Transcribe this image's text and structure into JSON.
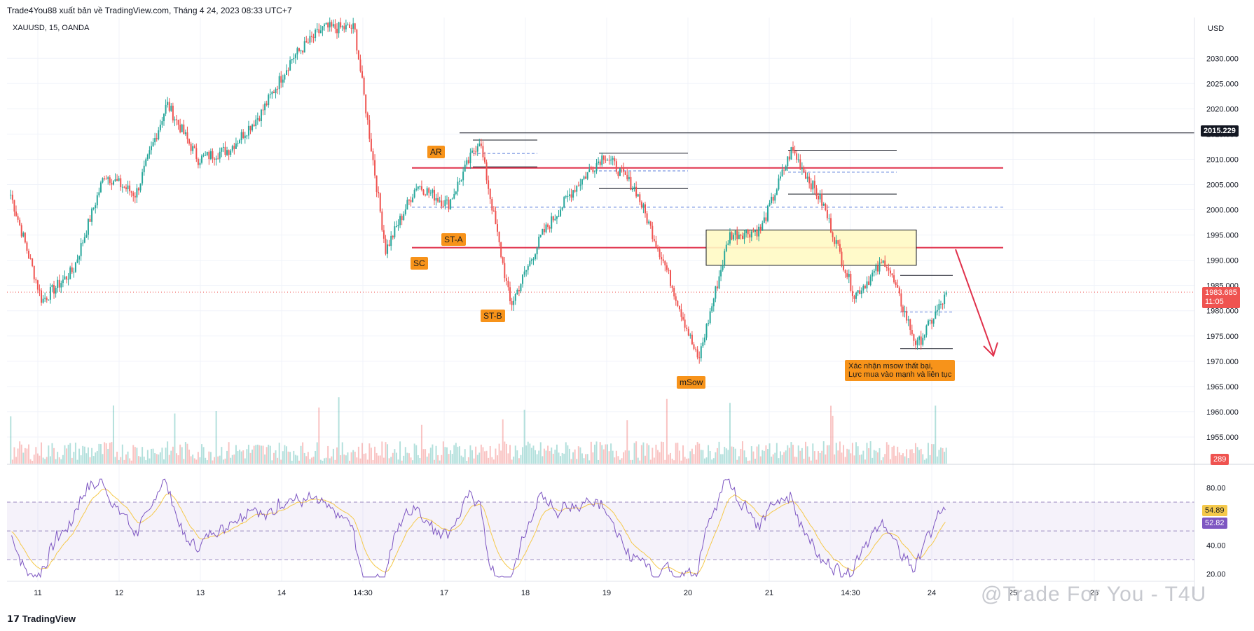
{
  "header": {
    "published_by": "Trade4You88 xuất bản về TradingView.com, Tháng 4 24, 2023 08:33 UTC+7"
  },
  "symbol_line": "XAUUSD, 15, OANDA",
  "footer": {
    "brand": "TradingView",
    "watermark": "@Trade For You - T4U"
  },
  "colors": {
    "up": "#26a69a",
    "down": "#ef5350",
    "rsi": "#7e57c2",
    "rsi_ma": "#f5c94b",
    "resistance": "#e0314b",
    "zone": "#fff9c4",
    "annotation": "#f7931a",
    "arrow": "#e0314b"
  },
  "chart_data": [
    {
      "type": "candlestick",
      "title": "XAUUSD, 15, OANDA",
      "ylabel": "USD",
      "ylim": [
        1950,
        2036
      ],
      "y_ticks": [
        "2030.000",
        "2025.000",
        "2020.000",
        "2015.000",
        "2010.000",
        "2005.000",
        "2000.000",
        "1995.000",
        "1990.000",
        "1985.000",
        "1980.000",
        "1975.000",
        "1970.000",
        "1965.000",
        "1960.000",
        "1955.000"
      ],
      "x_ticks": [
        "11",
        "12",
        "13",
        "14",
        "14:30",
        "17",
        "18",
        "19",
        "20",
        "21",
        "14:30",
        "24",
        "25",
        "26"
      ],
      "price_path_key_points": [
        {
          "x": "11",
          "y": 2003
        },
        {
          "x": "11",
          "y": 1982
        },
        {
          "x": "11",
          "y": 1988
        },
        {
          "x": "12",
          "y": 2007
        },
        {
          "x": "12",
          "y": 2003
        },
        {
          "x": "12",
          "y": 2021
        },
        {
          "x": "13",
          "y": 2010
        },
        {
          "x": "13",
          "y": 2012
        },
        {
          "x": "13",
          "y": 2019
        },
        {
          "x": "14",
          "y": 2030
        },
        {
          "x": "14",
          "y": 2036
        },
        {
          "x": "14:30",
          "y": 2036
        },
        {
          "x": "14:30",
          "y": 1992
        },
        {
          "x": "17",
          "y": 2005
        },
        {
          "x": "17",
          "y": 2001
        },
        {
          "x": "17",
          "y": 2014
        },
        {
          "x": "18",
          "y": 1981
        },
        {
          "x": "18",
          "y": 1995
        },
        {
          "x": "19",
          "y": 2004
        },
        {
          "x": "19",
          "y": 2011
        },
        {
          "x": "19",
          "y": 2004
        },
        {
          "x": "19",
          "y": 1988
        },
        {
          "x": "20",
          "y": 1970
        },
        {
          "x": "20",
          "y": 1995
        },
        {
          "x": "20",
          "y": 1996
        },
        {
          "x": "21",
          "y": 2012
        },
        {
          "x": "21",
          "y": 2001
        },
        {
          "x": "14:30",
          "y": 1983
        },
        {
          "x": "14:30",
          "y": 1990
        },
        {
          "x": "14:30",
          "y": 1973
        },
        {
          "x": "24",
          "y": 1983.685
        }
      ],
      "current_price": "1983.685",
      "countdown": "11:05",
      "level_label": "2015.229",
      "volume_value": "289",
      "horizontal_lines": [
        {
          "name": "top level",
          "y": 2015.229
        },
        {
          "name": "AR resistance",
          "y": 2008.3
        },
        {
          "name": "support",
          "y": 1992.5
        },
        {
          "name": "dashed mid",
          "y": 2000.5
        }
      ],
      "zone": {
        "y_from": 1989,
        "y_to": 1996
      },
      "annotations": [
        "AR",
        "ST-A",
        "SC",
        "ST-B",
        "mSow"
      ],
      "note": [
        "Xác nhận msow thất bại,",
        "Lực mua vào mạnh và liên tục"
      ]
    },
    {
      "type": "line",
      "name": "RSI",
      "ylim": [
        15,
        88
      ],
      "y_ticks": [
        "80.00",
        "40.00",
        "20.00"
      ],
      "band": [
        30,
        70
      ],
      "rsi_value": "52.82",
      "rsi_ma_value": "54.89"
    }
  ]
}
